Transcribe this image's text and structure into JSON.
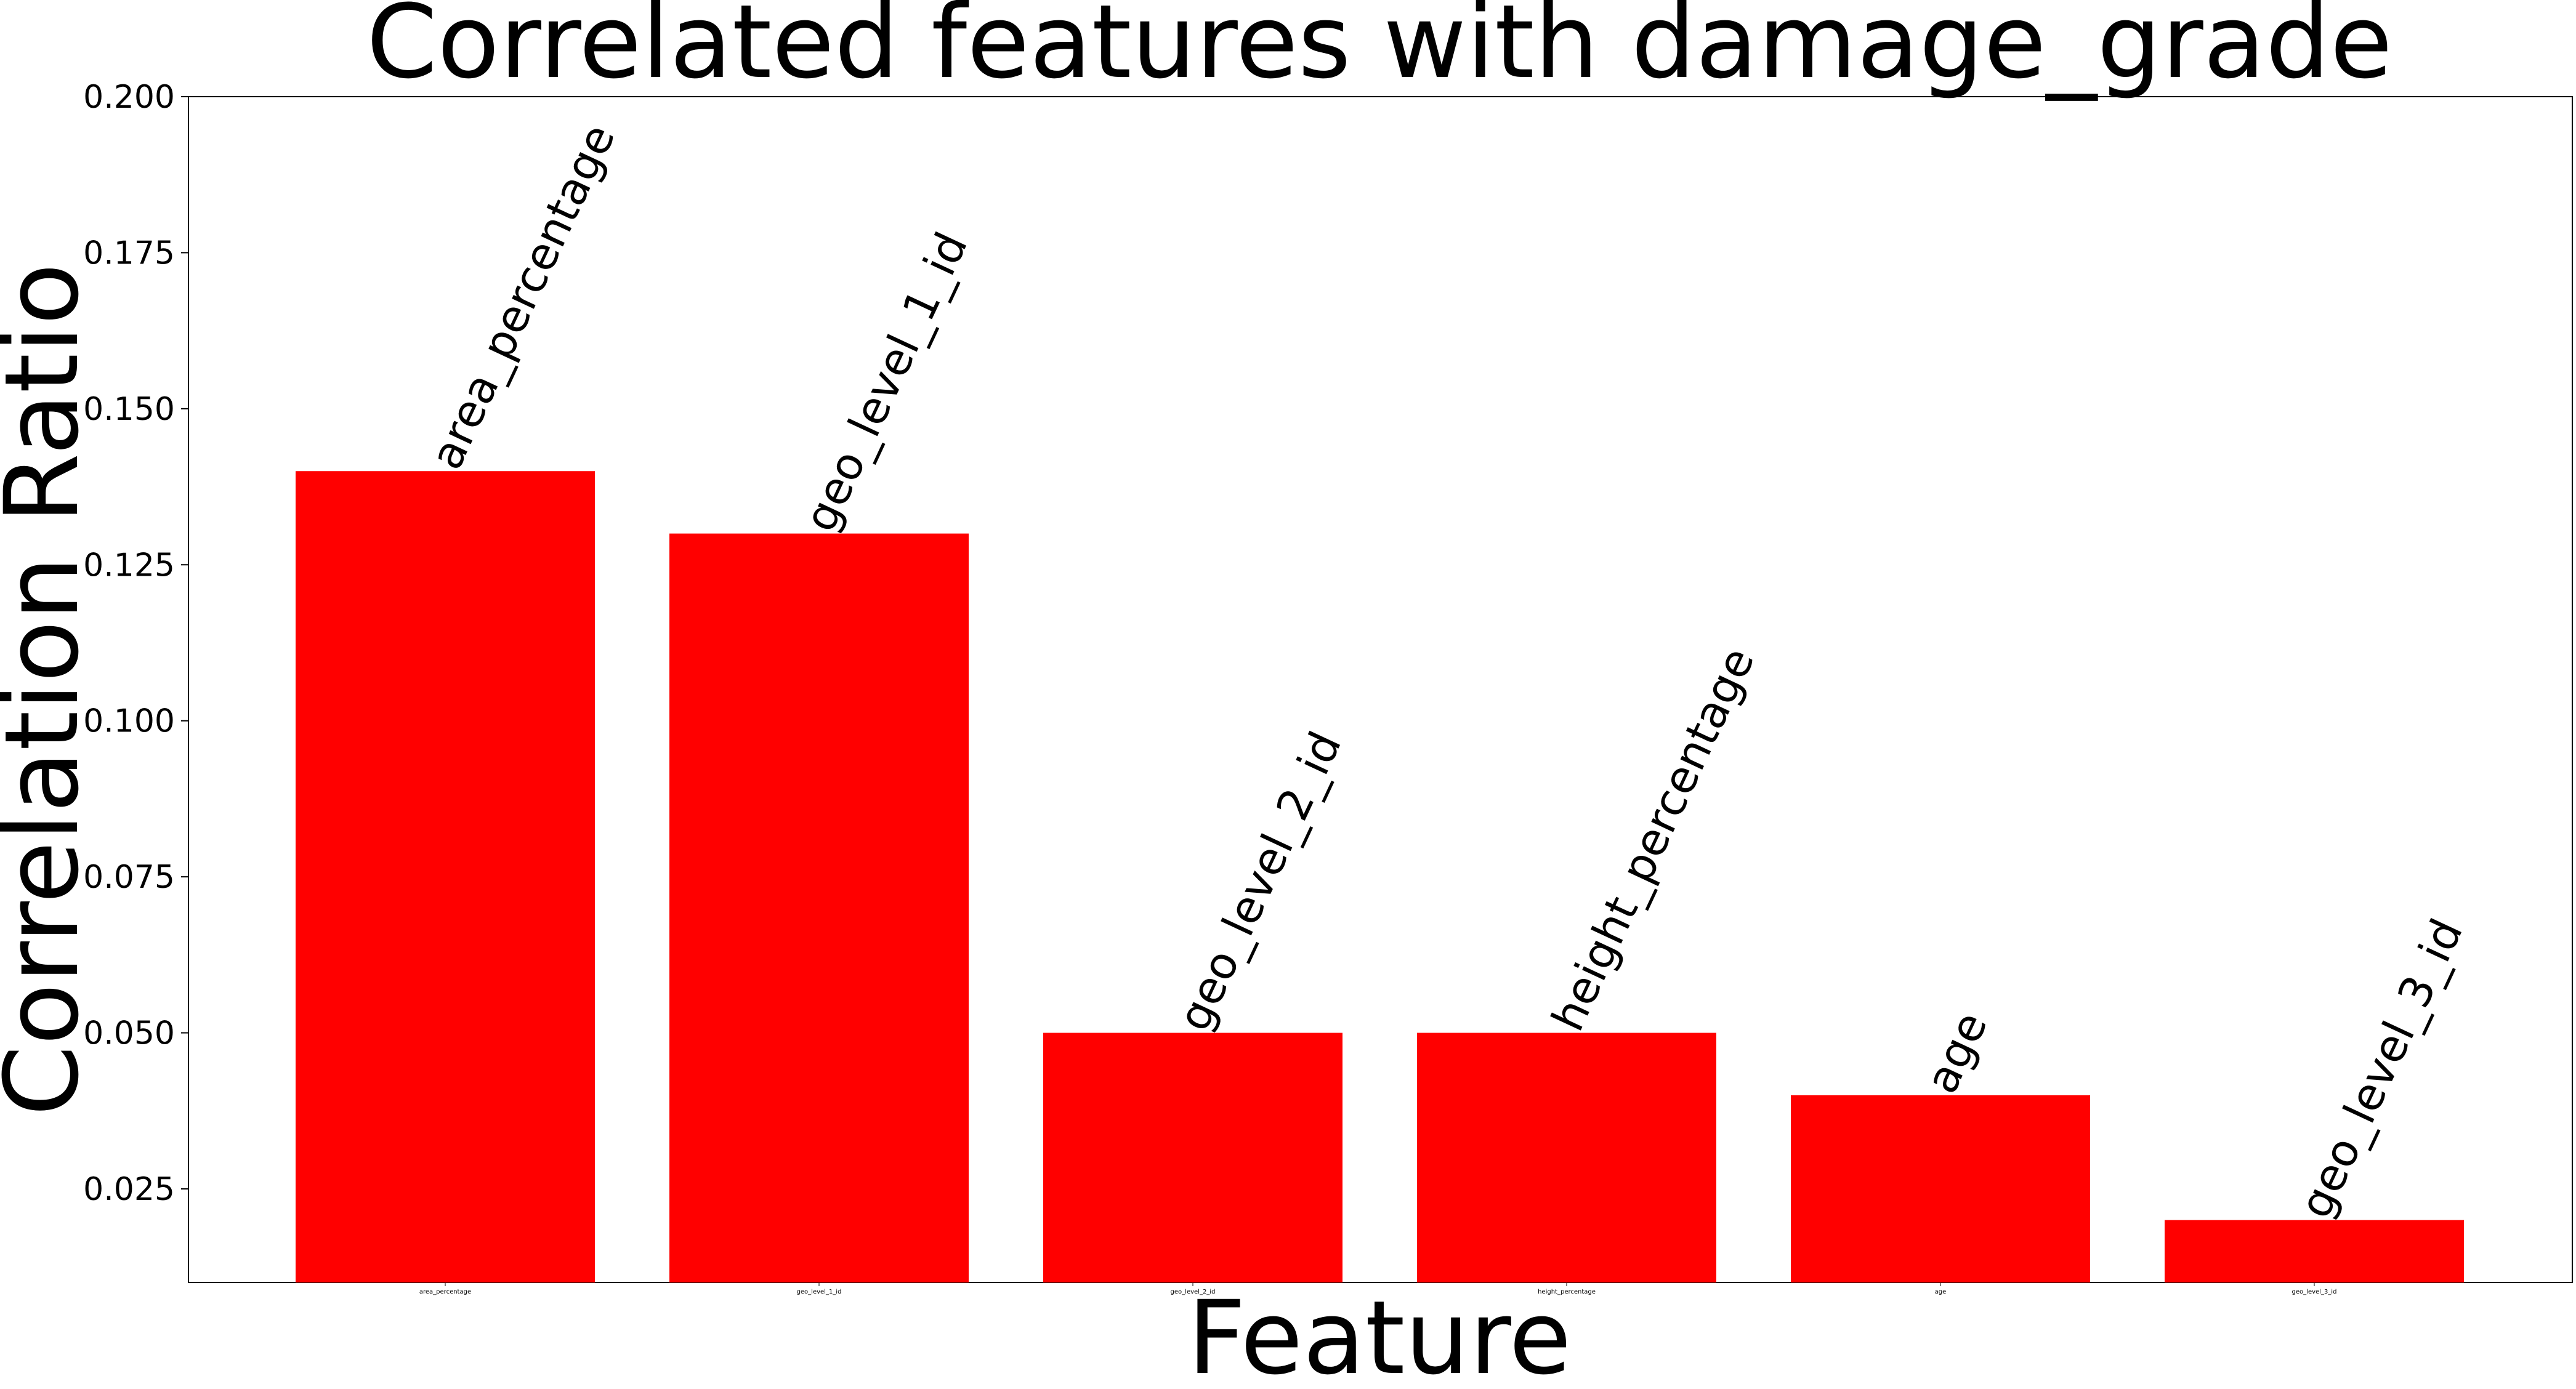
{
  "chart_data": {
    "type": "bar",
    "title": "Correlated features with damage_grade",
    "xlabel": "Feature",
    "ylabel": "Correlation Ratio",
    "categories": [
      "area_percentage",
      "geo_level_1_id",
      "geo_level_2_id",
      "height_percentage",
      "age",
      "geo_level_3_id"
    ],
    "values": [
      0.14,
      0.13,
      0.05,
      0.05,
      0.04,
      0.02
    ],
    "ylim": [
      0.01,
      0.2
    ],
    "yticks": [
      "0.025",
      "0.050",
      "0.075",
      "0.100",
      "0.125",
      "0.150",
      "0.175",
      "0.200"
    ],
    "bar_color": "#ff0000",
    "grid": false,
    "legend": "none"
  }
}
